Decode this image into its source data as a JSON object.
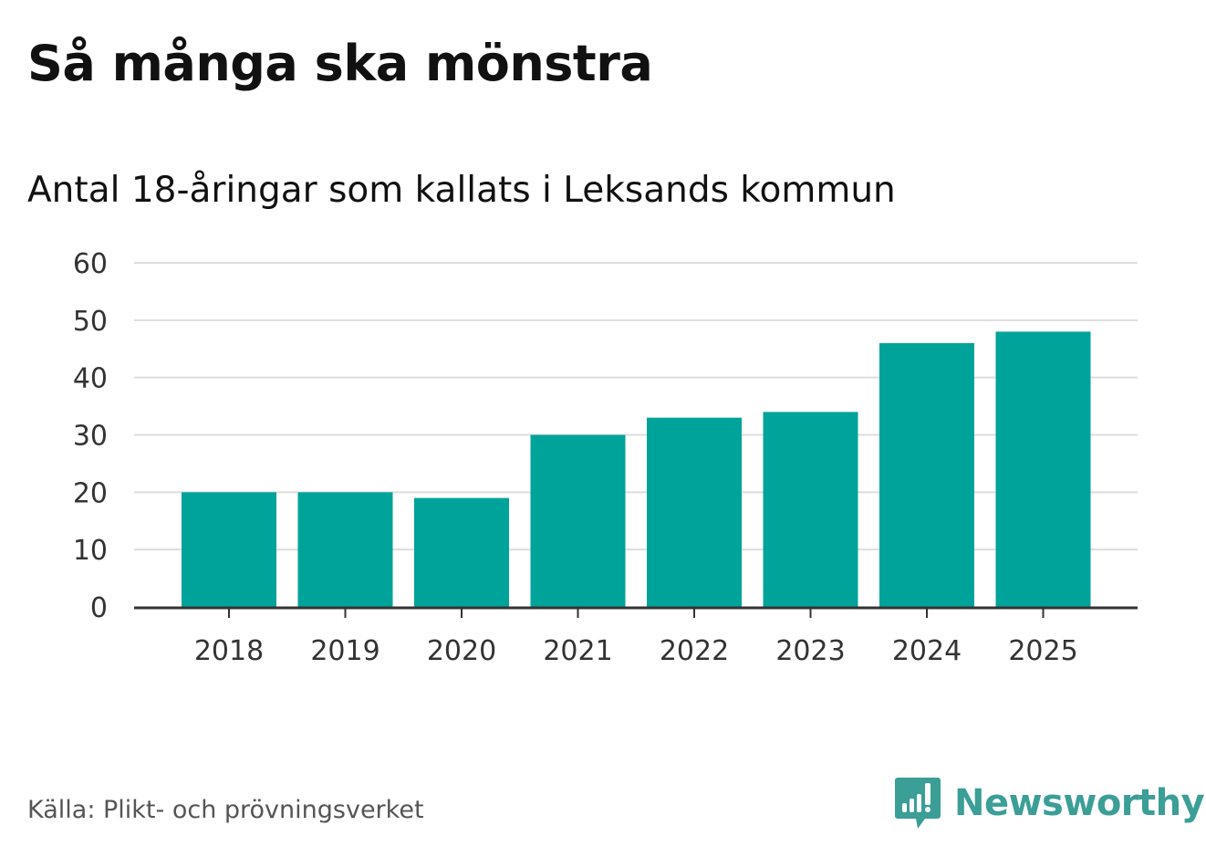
{
  "chart_data": {
    "type": "bar",
    "title": "Så många ska mönstra",
    "subtitle": "Antal 18-åringar som kallats i Leksands kommun",
    "categories": [
      "2018",
      "2019",
      "2020",
      "2021",
      "2022",
      "2023",
      "2024",
      "2025"
    ],
    "values": [
      20,
      20,
      19,
      30,
      33,
      34,
      46,
      48
    ],
    "xlabel": "",
    "ylabel": "",
    "ylim": [
      0,
      60
    ],
    "yticks": [
      0,
      10,
      20,
      30,
      40,
      50,
      60
    ],
    "grid": true,
    "legend": "none",
    "bar_color": "#00a39a"
  },
  "footer": {
    "source": "Källa: Plikt- och prövningsverket",
    "brand": "Newsworthy",
    "brand_icon": "newsworthy-logo-icon",
    "brand_color": "#3b9e97"
  }
}
